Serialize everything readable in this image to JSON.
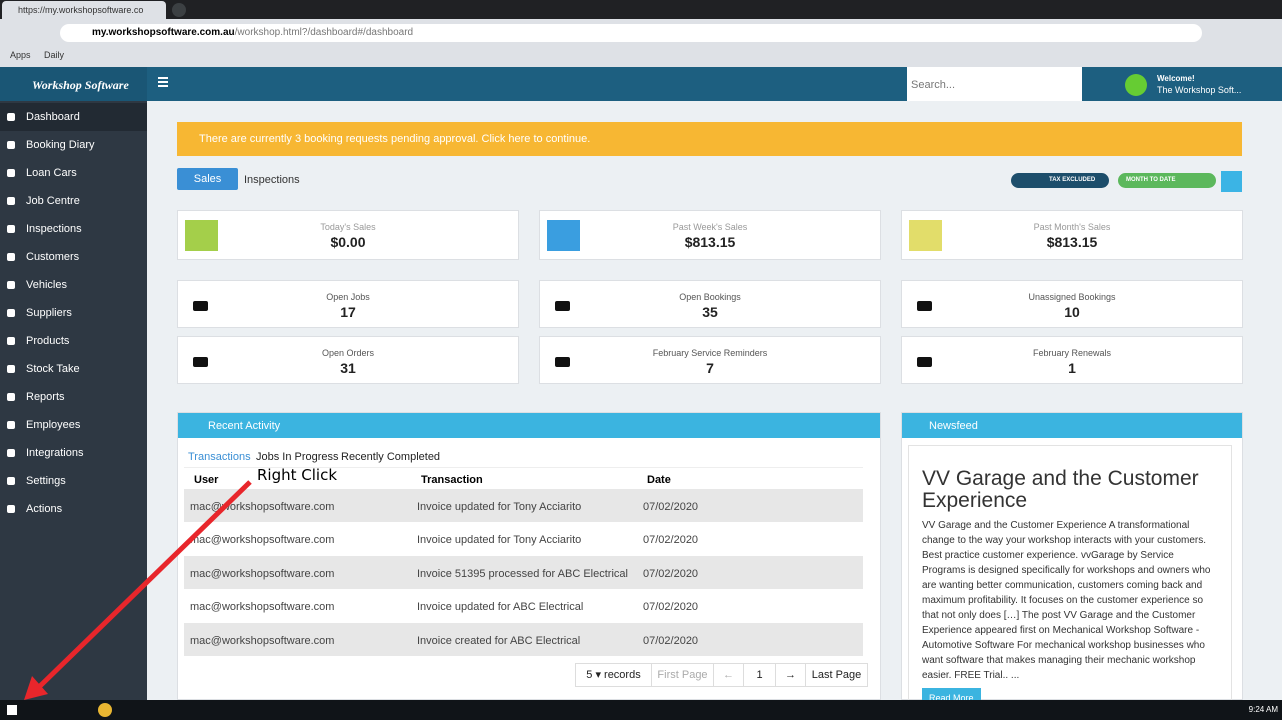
{
  "browser": {
    "tab_title": "https://my.workshopsoftware.co",
    "url_host": "my.workshopsoftware.com.au",
    "url_path": "/workshop.html?/dashboard#/dashboard",
    "bookmarks": [
      "Apps",
      "Daily"
    ]
  },
  "header": {
    "brand": "Workshop Software",
    "search_placeholder": "Search...",
    "welcome": "Welcome!",
    "user": "The Workshop Soft..."
  },
  "sidebar": {
    "items": [
      "Dashboard",
      "Booking Diary",
      "Loan Cars",
      "Job Centre",
      "Inspections",
      "Customers",
      "Vehicles",
      "Suppliers",
      "Products",
      "Stock Take",
      "Reports",
      "Employees",
      "Integrations",
      "Settings",
      "Actions"
    ]
  },
  "alert": "There are currently 3 booking requests pending approval. Click here to continue.",
  "tabs": [
    "Sales",
    "Inspections"
  ],
  "toggles": [
    "TAX EXCLUDED",
    "MONTH TO DATE"
  ],
  "stats": [
    {
      "label": "Today's Sales",
      "value": "$0.00"
    },
    {
      "label": "Past Week's Sales",
      "value": "$813.15"
    },
    {
      "label": "Past Month's Sales",
      "value": "$813.15"
    },
    {
      "label": "Open Jobs",
      "value": "17"
    },
    {
      "label": "Open Bookings",
      "value": "35"
    },
    {
      "label": "Unassigned Bookings",
      "value": "10"
    },
    {
      "label": "Open Orders",
      "value": "31"
    },
    {
      "label": "February Service Reminders",
      "value": "7"
    },
    {
      "label": "February Renewals",
      "value": "1"
    }
  ],
  "recent": {
    "title": "Recent Activity",
    "tabs": [
      "Transactions",
      "Jobs In Progress",
      "Recently Completed"
    ],
    "columns": [
      "User",
      "Transaction",
      "Date"
    ],
    "rows": [
      [
        "mac@workshopsoftware.com",
        "Invoice updated for Tony Acciarito",
        "07/02/2020"
      ],
      [
        "mac@workshopsoftware.com",
        "Invoice updated for Tony Acciarito",
        "07/02/2020"
      ],
      [
        "mac@workshopsoftware.com",
        "Invoice 51395 processed for ABC Electrical",
        "07/02/2020"
      ],
      [
        "mac@workshopsoftware.com",
        "Invoice updated for ABC Electrical",
        "07/02/2020"
      ],
      [
        "mac@workshopsoftware.com",
        "Invoice created for ABC Electrical",
        "07/02/2020"
      ]
    ],
    "pagination": [
      "5",
      "records",
      "First Page",
      "←",
      "1",
      "→",
      "Last Page"
    ]
  },
  "newsfeed": {
    "title": "Newsfeed",
    "headline": "VV Garage and the Customer Experience",
    "body": "VV Garage and the Customer Experience A transformational change to the way your workshop interacts with your customers. Best practice customer experience. vvGarage by Service Programs is designed specifically for workshops and owners who are wanting better communication, customers coming back and maximum profitability. It focuses on the customer experience so that not only does […] The post VV Garage and the Customer Experience appeared first on Mechanical Workshop Software - Automotive Software For mechanical workshop businesses who want software that makes managing their mechanic workshop easier. FREE Trial.. ...",
    "button": "Read More"
  },
  "annotation": "Right Click",
  "taskbar": {
    "time": "9:24 AM"
  }
}
